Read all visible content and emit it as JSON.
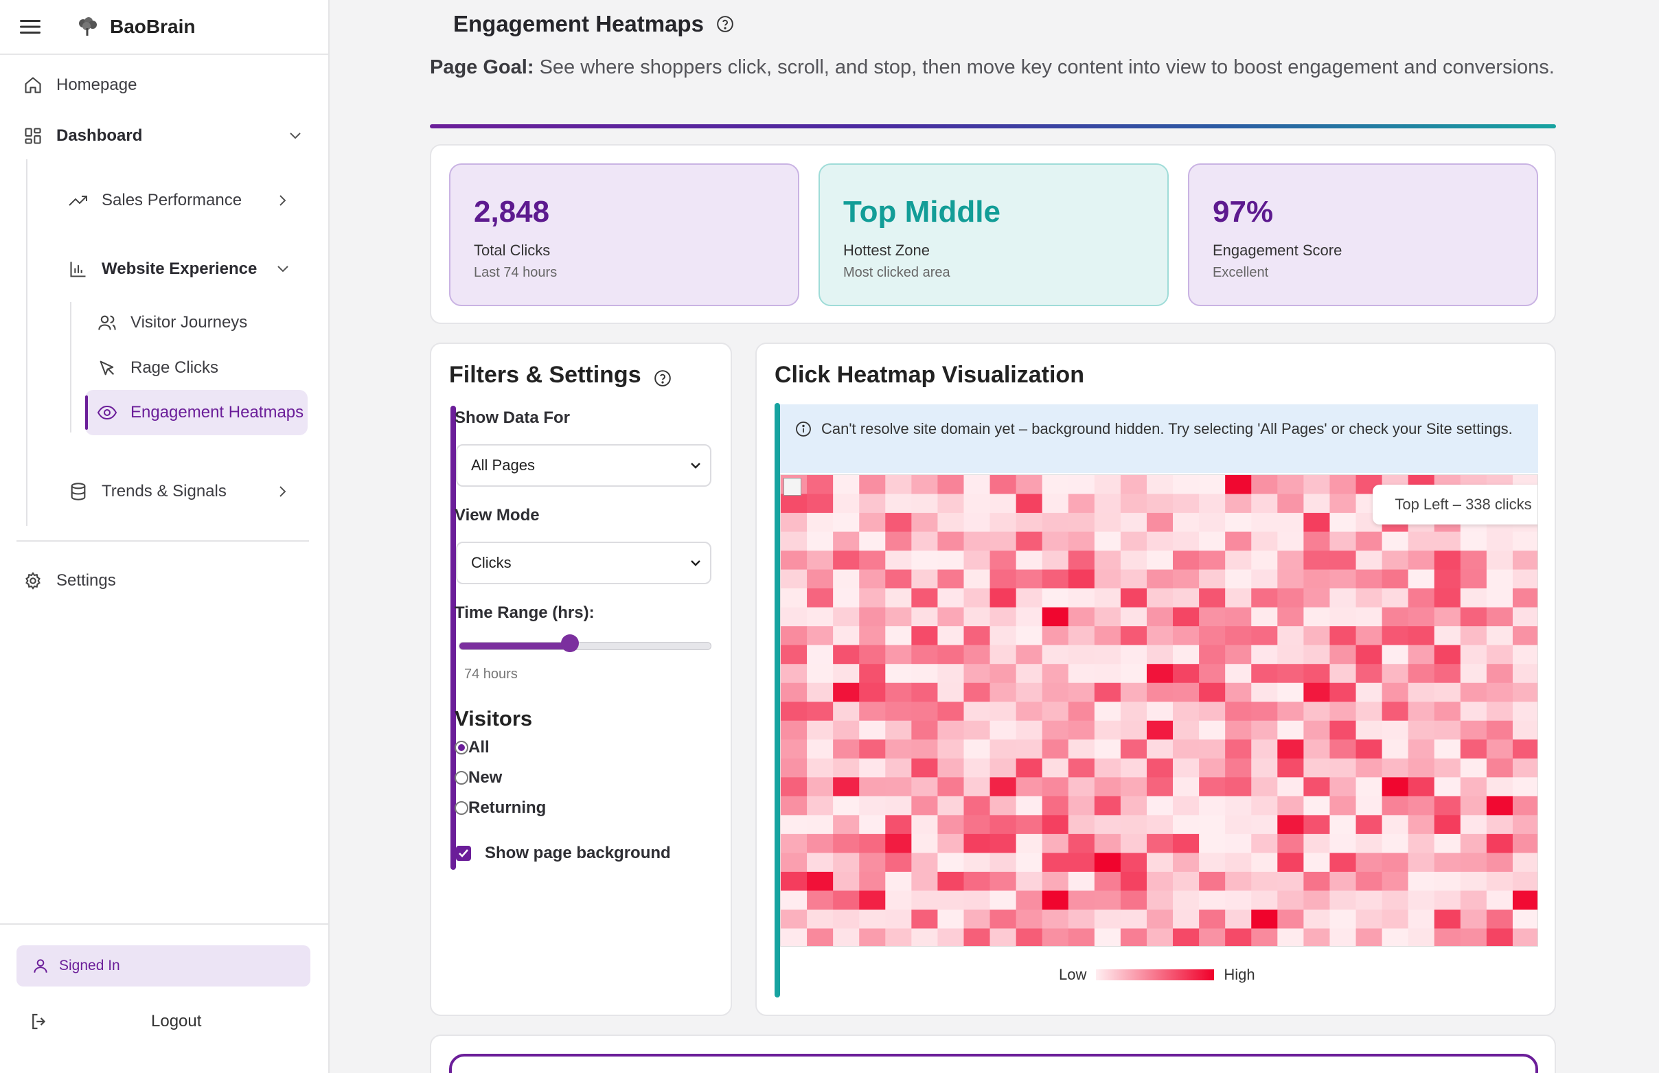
{
  "app": {
    "brand": "BaoBrain"
  },
  "sidebar": {
    "homepage": "Homepage",
    "dashboard": "Dashboard",
    "sales_performance": "Sales Performance",
    "website_experience": "Website Experience",
    "visitor_journeys": "Visitor Journeys",
    "rage_clicks": "Rage Clicks",
    "engagement_heatmaps": "Engagement Heatmaps",
    "trends_signals": "Trends & Signals",
    "settings": "Settings",
    "signed_in": "Signed In",
    "logout": "Logout"
  },
  "page": {
    "title": "Engagement Heatmaps",
    "goal_label": "Page Goal:",
    "goal_text": "See where shoppers click, scroll, and stop, then move key content into view to boost engagement and conversions."
  },
  "stats": [
    {
      "value": "2,848",
      "title": "Total Clicks",
      "sub": "Last 74 hours"
    },
    {
      "value": "Top Middle",
      "title": "Hottest Zone",
      "sub": "Most clicked area"
    },
    {
      "value": "97%",
      "title": "Engagement Score",
      "sub": "Excellent"
    }
  ],
  "filters": {
    "title": "Filters & Settings",
    "show_data_for_label": "Show Data For",
    "show_data_for_value": "All Pages",
    "view_mode_label": "View Mode",
    "view_mode_value": "Clicks",
    "time_range_label": "Time Range (hrs):",
    "time_range_value": 74,
    "time_range_fraction": 0.44,
    "time_range_text": "74 hours",
    "visitors_label": "Visitors",
    "visitor_options": [
      "All",
      "New",
      "Returning"
    ],
    "visitor_selected": "All",
    "show_background_label": "Show page background",
    "show_background_checked": true
  },
  "heatmap": {
    "title": "Click Heatmap Visualization",
    "info": "Can't resolve site domain yet – background hidden. Try selecting 'All Pages' or check your Site settings.",
    "tooltip": "Top Left – 338 clicks",
    "legend_low": "Low",
    "legend_high": "High",
    "color_low": "#ffeef1",
    "color_high": "#f0002a",
    "cols": 29,
    "rows": 25
  },
  "colors": {
    "accent": "#6b1e99",
    "teal": "#17a3a0"
  }
}
